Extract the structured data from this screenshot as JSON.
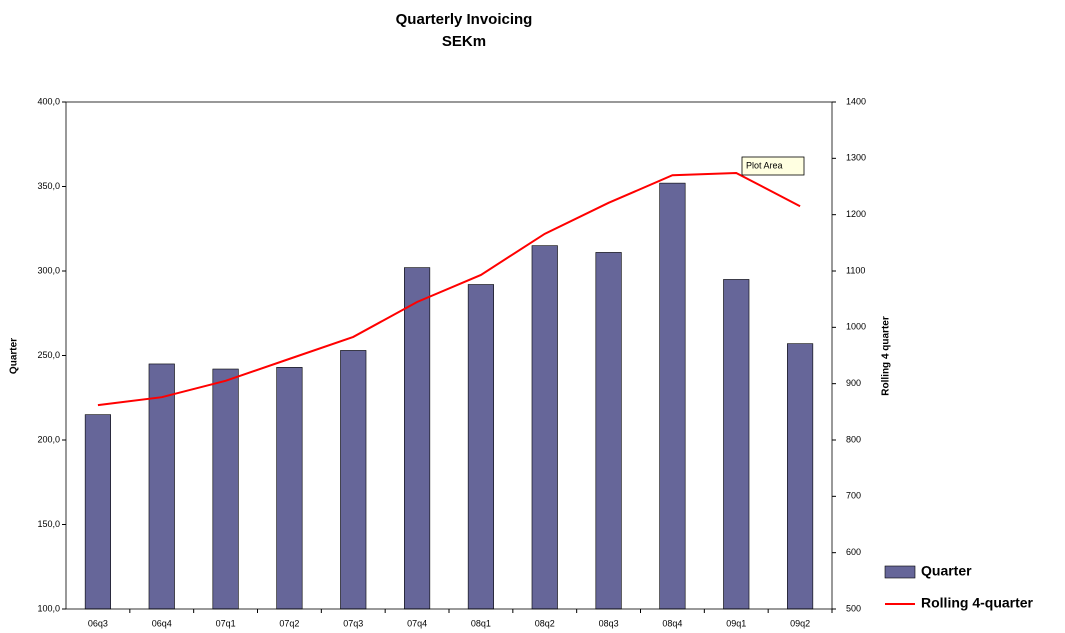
{
  "chart_data": {
    "type": "bar_line",
    "title": "Quarterly Invoicing",
    "subtitle": "SEKm",
    "y_label": "Quarter",
    "y2_label": "Rolling 4 quarter",
    "annotation": "Plot Area",
    "categories": [
      "06q3",
      "06q4",
      "07q1",
      "07q2",
      "07q3",
      "07q4",
      "08q1",
      "08q2",
      "08q3",
      "08q4",
      "09q1",
      "09q2"
    ],
    "series": [
      {
        "name": "Quarter",
        "type": "bar",
        "color": "#666699",
        "values": [
          215,
          245,
          242,
          243,
          253,
          302,
          292,
          315,
          311,
          352,
          295,
          257
        ]
      },
      {
        "name": "Rolling 4-quarter",
        "type": "line",
        "axis": "y2",
        "color": "#ff0000",
        "values": [
          862,
          876,
          905,
          944,
          983,
          1045,
          1093,
          1166,
          1221,
          1270,
          1274,
          1215
        ]
      }
    ],
    "ylim": [
      100,
      400
    ],
    "yticks": [
      {
        "value": 100,
        "label": "100,0"
      },
      {
        "value": 150,
        "label": "150,0"
      },
      {
        "value": 200,
        "label": "200,0"
      },
      {
        "value": 250,
        "label": "250,0"
      },
      {
        "value": 300,
        "label": "300,0"
      },
      {
        "value": 350,
        "label": "350,0"
      },
      {
        "value": 400,
        "label": "400,0"
      }
    ],
    "y2lim": [
      500,
      1400
    ],
    "y2ticks": [
      500,
      600,
      700,
      800,
      900,
      1000,
      1100,
      1200,
      1300,
      1400
    ],
    "legend": "right"
  }
}
